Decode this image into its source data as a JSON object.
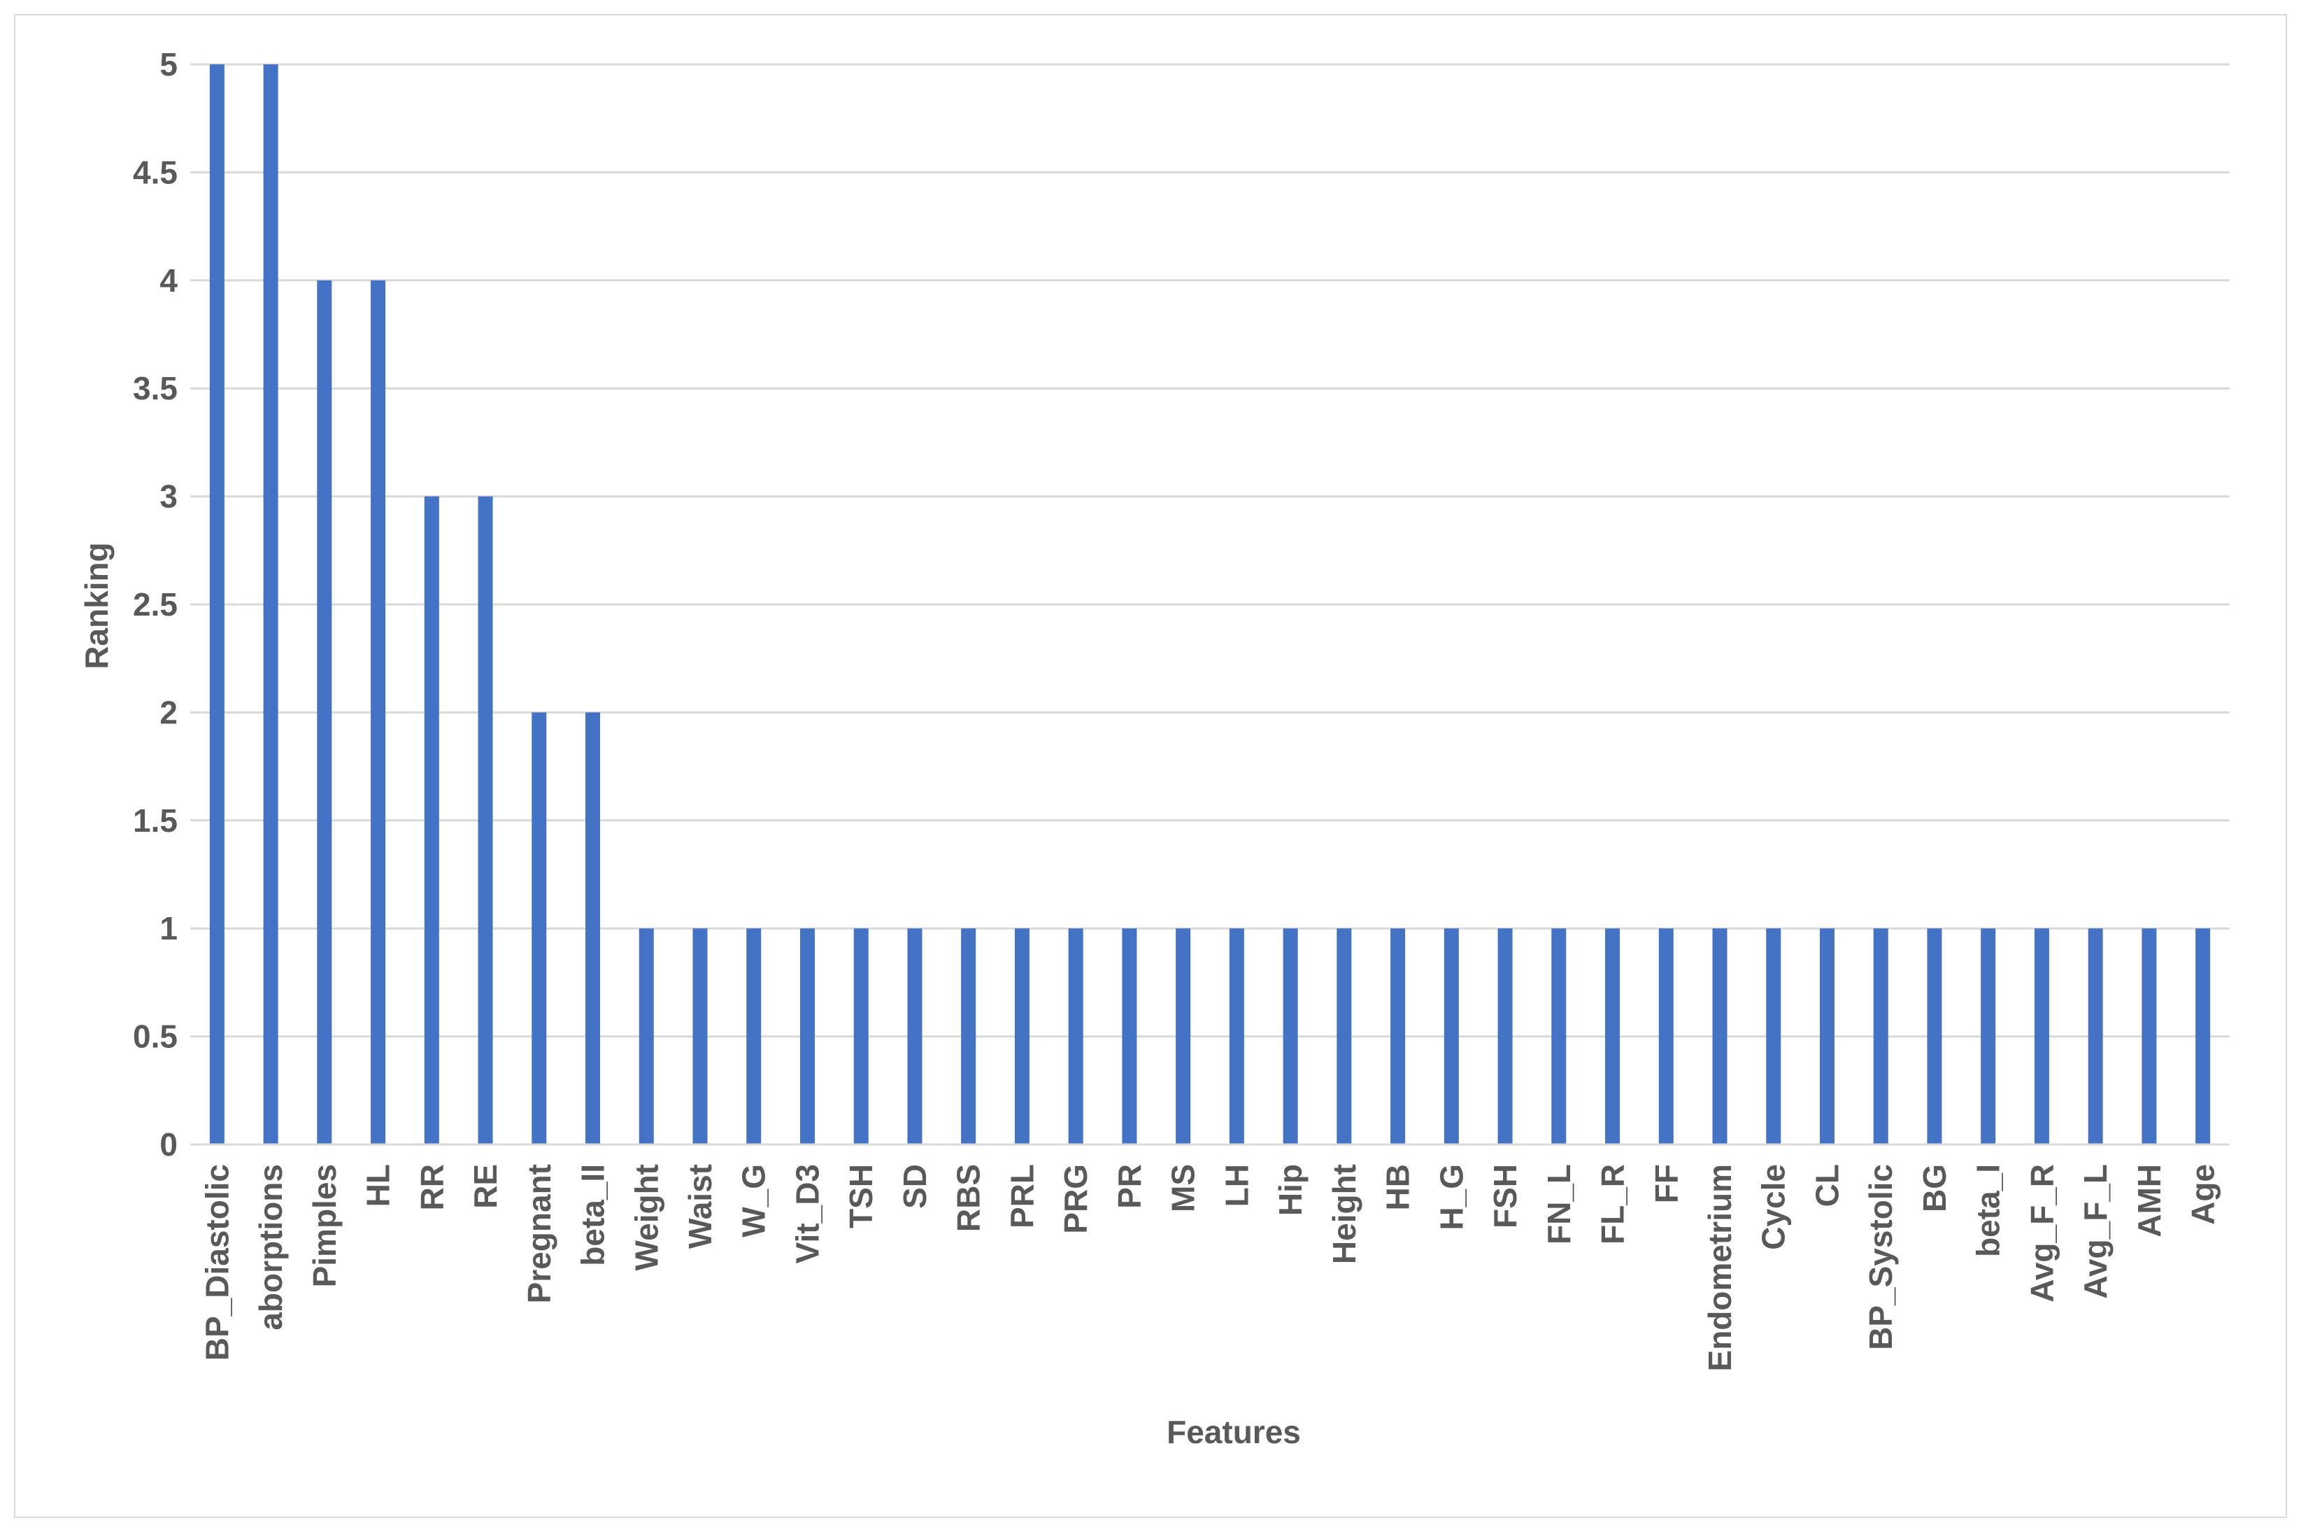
{
  "chart_data": {
    "type": "bar",
    "title": "",
    "xlabel": "Features",
    "ylabel": "Ranking",
    "ylim": [
      0,
      5
    ],
    "yticks": [
      "0",
      "0.5",
      "1",
      "1.5",
      "2",
      "2.5",
      "3",
      "3.5",
      "4",
      "4.5",
      "5"
    ],
    "grid": true,
    "legend": "none",
    "bar_color": "#4472C4",
    "gridline_color": "#d9d9d9",
    "categories": [
      "BP_Diastolic",
      "aborptions",
      "Pimples",
      "HL",
      "RR",
      "RE",
      "Pregnant",
      "beta_II",
      "Weight",
      "Waist",
      "W_G",
      "Vit_D3",
      "TSH",
      "SD",
      "RBS",
      "PRL",
      "PRG",
      "PR",
      "MS",
      "LH",
      "Hip",
      "Height",
      "HB",
      "H_G",
      "FSH",
      "FN_L",
      "FL_R",
      "FF",
      "Endometrium",
      "Cycle",
      "CL",
      "BP_Systolic",
      "BG",
      "beta_I",
      "Avg_F_R",
      "Avg_F_L",
      "AMH",
      "Age"
    ],
    "values": [
      5,
      5,
      4,
      4,
      3,
      3,
      2,
      2,
      1,
      1,
      1,
      1,
      1,
      1,
      1,
      1,
      1,
      1,
      1,
      1,
      1,
      1,
      1,
      1,
      1,
      1,
      1,
      1,
      1,
      1,
      1,
      1,
      1,
      1,
      1,
      1,
      1,
      1
    ]
  }
}
